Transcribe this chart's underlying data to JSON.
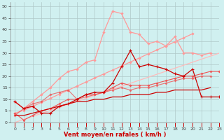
{
  "x": [
    0,
    1,
    2,
    3,
    4,
    5,
    6,
    7,
    8,
    9,
    10,
    11,
    12,
    13,
    14,
    15,
    16,
    17,
    18,
    19,
    20,
    21,
    22,
    23
  ],
  "line_pink_big": [
    9,
    6,
    9,
    12,
    15,
    19,
    22,
    23,
    26,
    27,
    39,
    48,
    47,
    39,
    38,
    34,
    35,
    33,
    37,
    30,
    30,
    29,
    30,
    null
  ],
  "line_pink_slope_high": [
    4,
    5.2,
    6.9,
    8.7,
    10.4,
    12.2,
    13.9,
    15.7,
    17.4,
    19.2,
    20.9,
    22.6,
    24.3,
    26.1,
    27.8,
    29.6,
    31.3,
    33.0,
    34.8,
    36.5,
    38.3,
    null,
    null,
    null
  ],
  "line_pink_slope_low": [
    0,
    1.3,
    2.6,
    3.9,
    5.2,
    6.5,
    7.8,
    9.1,
    10.4,
    11.7,
    13.0,
    14.3,
    15.6,
    16.9,
    18.2,
    19.5,
    20.8,
    22.1,
    23.4,
    24.7,
    26.0,
    27.3,
    28.6,
    29.9
  ],
  "line_red_medium": [
    4,
    1,
    3,
    5,
    6,
    8,
    10,
    10,
    12,
    12,
    13,
    15,
    17,
    16,
    16,
    16,
    17,
    18,
    19,
    20,
    20,
    21,
    22,
    22
  ],
  "line_dark_red_spiky": [
    9,
    6,
    7,
    4,
    4,
    7,
    8,
    10,
    12,
    13,
    13,
    17,
    24,
    31,
    24,
    25,
    24,
    23,
    21,
    20,
    23,
    11,
    11,
    11
  ],
  "line_dark_red_flat": [
    3,
    3,
    4,
    5,
    6,
    7,
    8,
    9,
    9,
    10,
    10,
    11,
    11,
    12,
    12,
    12,
    13,
    13,
    14,
    14,
    14,
    14,
    15,
    null
  ],
  "line_red_mid2": [
    3,
    6,
    8,
    9,
    12,
    13,
    14,
    10,
    11,
    12,
    13,
    14,
    15,
    14,
    15,
    15,
    16,
    17,
    18,
    19,
    19,
    20,
    20,
    null
  ],
  "bg_color": "#d0f0f0",
  "grid_color": "#b0c8c8",
  "color_dark_red": "#cc0000",
  "color_medium_red": "#ee5555",
  "color_light_pink": "#ff9999",
  "color_pale_pink": "#ffbbbb",
  "xlabel": "Vent moyen/en rafales ( km/h )",
  "ylim": [
    0,
    52
  ],
  "xlim": [
    -0.5,
    23
  ],
  "yticks": [
    0,
    5,
    10,
    15,
    20,
    25,
    30,
    35,
    40,
    45,
    50
  ],
  "xticks": [
    0,
    1,
    2,
    3,
    4,
    5,
    6,
    7,
    8,
    9,
    10,
    11,
    12,
    13,
    14,
    15,
    16,
    17,
    18,
    19,
    20,
    21,
    22,
    23
  ]
}
